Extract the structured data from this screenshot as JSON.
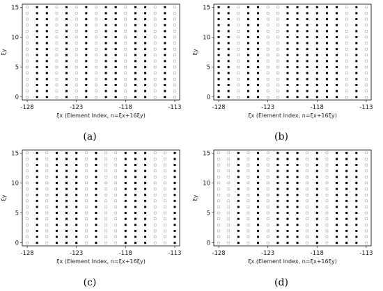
{
  "chart_data": [
    {
      "type": "scatter",
      "panel_label": "(a)",
      "xlabel_symbol": "ξx",
      "xlabel_text": "(Element Index, n=ξx+16ξy)",
      "ylabel": "ξy",
      "x_ticks": [
        -128,
        -123,
        -118,
        -113
      ],
      "y_ticks": [
        0,
        5,
        10,
        15
      ],
      "xlim": [
        -128.5,
        -112.5
      ],
      "ylim": [
        -0.5,
        15.5
      ],
      "filled_columns": [
        -127,
        -126,
        -124,
        -122,
        -120,
        -119,
        -117,
        -116,
        -114
      ],
      "grid_x": [
        -128,
        -113
      ],
      "grid_y": [
        0,
        15
      ],
      "legend": "none"
    },
    {
      "type": "scatter",
      "panel_label": "(b)",
      "xlabel_symbol": "ξx",
      "xlabel_text": "(Element Index, n=ξx+16ξy)",
      "ylabel": "ξy",
      "x_ticks": [
        -128,
        -123,
        -118,
        -113
      ],
      "y_ticks": [
        0,
        5,
        10,
        15
      ],
      "xlim": [
        -128.5,
        -112.5
      ],
      "ylim": [
        -0.5,
        15.5
      ],
      "filled_columns": [
        -128,
        -127,
        -125,
        -124,
        -121,
        -120,
        -119,
        -118,
        -117,
        -116,
        -114
      ],
      "grid_x": [
        -128,
        -113
      ],
      "grid_y": [
        0,
        15
      ],
      "legend": "none"
    },
    {
      "type": "scatter",
      "panel_label": "(c)",
      "xlabel_symbol": "ξx",
      "xlabel_text": "(Element Index, n=ξx+16ξy)",
      "ylabel": "ξy",
      "x_ticks": [
        -128,
        -123,
        -118,
        -113
      ],
      "y_ticks": [
        0,
        5,
        10,
        15
      ],
      "xlim": [
        -128.5,
        -112.5
      ],
      "ylim": [
        -0.5,
        15.5
      ],
      "filled_columns": [
        -127,
        -125,
        -124,
        -123,
        -121,
        -118,
        -117,
        -116,
        -113
      ],
      "grid_x": [
        -128,
        -113
      ],
      "grid_y": [
        0,
        15
      ],
      "legend": "none"
    },
    {
      "type": "scatter",
      "panel_label": "(d)",
      "xlabel_symbol": "ξx",
      "xlabel_text": "(Element Index, n=ξx+16ξy)",
      "ylabel": "ξy",
      "x_ticks": [
        -128,
        -123,
        -118,
        -113
      ],
      "y_ticks": [
        0,
        5,
        10,
        15
      ],
      "xlim": [
        -128.5,
        -112.5
      ],
      "ylim": [
        -0.5,
        15.5
      ],
      "filled_columns": [
        -126,
        -124,
        -122,
        -121,
        -120,
        -118,
        -116,
        -115,
        -114
      ],
      "grid_x": [
        -128,
        -113
      ],
      "grid_y": [
        0,
        15
      ],
      "legend": "none"
    }
  ]
}
